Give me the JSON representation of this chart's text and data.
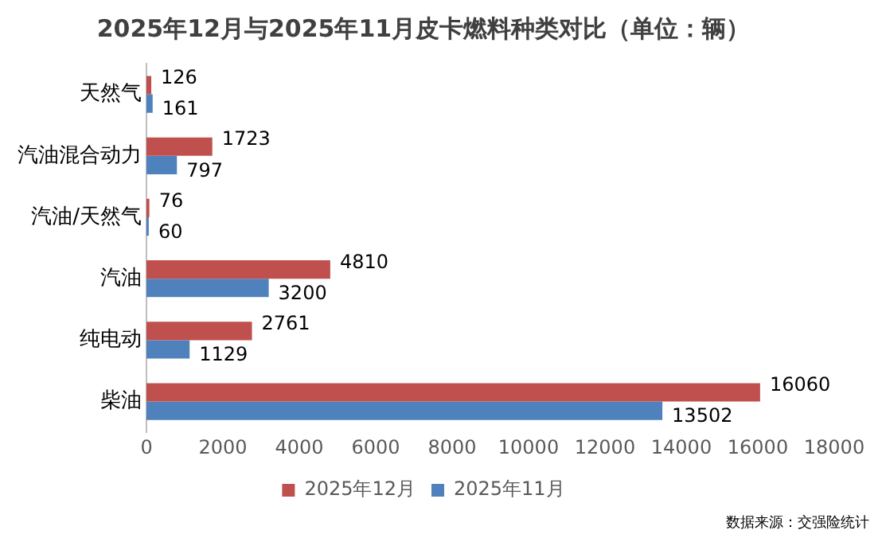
{
  "chart_data": {
    "type": "bar",
    "orientation": "horizontal",
    "title": "2025年12月与2025年11月皮卡燃料种类对比（单位：辆）",
    "categories": [
      "天然气",
      "汽油混合动力",
      "汽油/天然气",
      "汽油",
      "纯电动",
      "柴油"
    ],
    "series": [
      {
        "name": "2025年12月",
        "color": "#c0504d",
        "values": [
          126,
          1723,
          76,
          4810,
          2761,
          16060
        ]
      },
      {
        "name": "2025年11月",
        "color": "#4f81bd",
        "values": [
          161,
          797,
          60,
          3200,
          1129,
          13502
        ]
      }
    ],
    "xlim": [
      0,
      18000
    ],
    "xticks": [
      0,
      2000,
      4000,
      6000,
      8000,
      10000,
      12000,
      14000,
      16000,
      18000
    ],
    "grid": false,
    "legend": "bottom",
    "data_labels": true,
    "annotations": [
      "数据来源：交强险统计"
    ]
  }
}
